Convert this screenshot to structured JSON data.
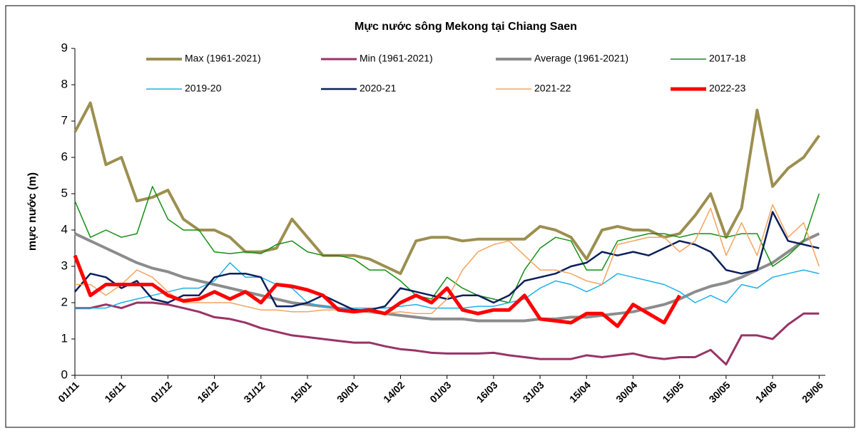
{
  "chart_data": {
    "type": "line",
    "title": "Mực nước sông Mekong tại Chiang Saen",
    "y_label": "mực  nước (m)",
    "x": [
      0,
      5,
      10,
      15,
      20,
      25,
      30,
      35,
      40,
      45,
      50,
      55,
      60,
      65,
      70,
      75,
      80,
      85,
      90,
      95,
      100,
      105,
      110,
      115,
      120,
      125,
      130,
      135,
      140,
      145,
      150,
      155,
      160,
      165,
      170,
      175,
      180,
      185,
      190,
      195,
      200,
      205,
      210,
      215,
      220,
      225,
      230,
      235,
      240
    ],
    "xlim": [
      0,
      242
    ],
    "xticks": [
      {
        "value": 0,
        "label": "01/11"
      },
      {
        "value": 15,
        "label": "16/11"
      },
      {
        "value": 30,
        "label": "01/12"
      },
      {
        "value": 45,
        "label": "16/12"
      },
      {
        "value": 60,
        "label": "31/12"
      },
      {
        "value": 75,
        "label": "15/01"
      },
      {
        "value": 90,
        "label": "30/01"
      },
      {
        "value": 105,
        "label": "14/02"
      },
      {
        "value": 120,
        "label": "01/03"
      },
      {
        "value": 135,
        "label": "16/03"
      },
      {
        "value": 150,
        "label": "31/03"
      },
      {
        "value": 165,
        "label": "15/04"
      },
      {
        "value": 180,
        "label": "30/04"
      },
      {
        "value": 195,
        "label": "15/05"
      },
      {
        "value": 210,
        "label": "30/05"
      },
      {
        "value": 225,
        "label": "14/06"
      },
      {
        "value": 240,
        "label": "29/06"
      }
    ],
    "ylim": [
      0,
      9
    ],
    "yticks": [
      0,
      1,
      2,
      3,
      4,
      5,
      6,
      7,
      8,
      9
    ],
    "series": [
      {
        "name": "Max (1961-2021)",
        "color": "#9c8f50",
        "width": 4,
        "values": [
          6.7,
          7.5,
          5.8,
          6.0,
          4.8,
          4.9,
          5.1,
          4.3,
          4.0,
          4.0,
          3.8,
          3.4,
          3.4,
          3.5,
          4.3,
          3.8,
          3.3,
          3.3,
          3.3,
          3.2,
          3.0,
          2.8,
          3.7,
          3.8,
          3.8,
          3.7,
          3.75,
          3.75,
          3.75,
          3.75,
          4.1,
          4.0,
          3.8,
          3.2,
          4.0,
          4.1,
          4.0,
          4.0,
          3.8,
          3.9,
          4.4,
          5.0,
          3.8,
          4.6,
          7.3,
          5.2,
          5.7,
          6.0,
          6.6
        ]
      },
      {
        "name": "Min (1961-2021)",
        "color": "#993366",
        "width": 3,
        "values": [
          1.85,
          1.85,
          1.95,
          1.85,
          2.0,
          2.0,
          1.95,
          1.85,
          1.75,
          1.6,
          1.55,
          1.45,
          1.3,
          1.2,
          1.1,
          1.05,
          1.0,
          0.95,
          0.9,
          0.9,
          0.8,
          0.72,
          0.68,
          0.62,
          0.6,
          0.6,
          0.6,
          0.62,
          0.55,
          0.5,
          0.45,
          0.45,
          0.45,
          0.55,
          0.5,
          0.55,
          0.6,
          0.5,
          0.45,
          0.5,
          0.5,
          0.7,
          0.3,
          1.1,
          1.1,
          1.0,
          1.4,
          1.7,
          1.7
        ]
      },
      {
        "name": "Average (1961-2021)",
        "color": "#8c8c8c",
        "width": 4,
        "values": [
          3.9,
          3.7,
          3.5,
          3.3,
          3.1,
          2.95,
          2.85,
          2.7,
          2.6,
          2.5,
          2.4,
          2.3,
          2.2,
          2.1,
          2.0,
          1.95,
          1.9,
          1.85,
          1.8,
          1.75,
          1.7,
          1.65,
          1.6,
          1.55,
          1.55,
          1.55,
          1.5,
          1.5,
          1.5,
          1.5,
          1.55,
          1.55,
          1.6,
          1.6,
          1.65,
          1.7,
          1.75,
          1.85,
          1.95,
          2.1,
          2.3,
          2.45,
          2.55,
          2.7,
          2.9,
          3.1,
          3.4,
          3.7,
          3.9
        ]
      },
      {
        "name": "2017-18",
        "color": "#138f13",
        "width": 1.5,
        "values": [
          4.8,
          3.8,
          4.0,
          3.8,
          3.9,
          5.2,
          4.3,
          4.0,
          4.0,
          3.4,
          3.35,
          3.4,
          3.35,
          3.6,
          3.7,
          3.4,
          3.3,
          3.3,
          3.2,
          2.9,
          2.9,
          2.6,
          2.2,
          2.1,
          2.7,
          2.4,
          2.2,
          2.1,
          2.0,
          2.9,
          3.5,
          3.8,
          3.7,
          2.9,
          2.9,
          3.7,
          3.8,
          3.9,
          3.9,
          3.8,
          3.9,
          3.9,
          3.8,
          3.9,
          3.9,
          3.0,
          3.3,
          3.7,
          5.0
        ]
      },
      {
        "name": "2019-20",
        "color": "#1fb0e8",
        "width": 1.5,
        "values": [
          1.85,
          1.85,
          1.85,
          2.0,
          2.1,
          2.2,
          2.3,
          2.4,
          2.4,
          2.6,
          3.1,
          2.7,
          2.7,
          2.5,
          2.4,
          2.0,
          1.9,
          1.85,
          1.85,
          1.85,
          1.85,
          1.9,
          1.95,
          1.85,
          1.85,
          1.85,
          1.9,
          1.9,
          2.0,
          2.1,
          2.4,
          2.6,
          2.5,
          2.3,
          2.5,
          2.8,
          2.7,
          2.6,
          2.5,
          2.3,
          2.0,
          2.2,
          2.0,
          2.5,
          2.4,
          2.7,
          2.8,
          2.9,
          2.8
        ]
      },
      {
        "name": "2020-21",
        "color": "#0b1f5c",
        "width": 2.5,
        "values": [
          2.3,
          2.8,
          2.7,
          2.4,
          2.6,
          2.1,
          2.0,
          2.2,
          2.2,
          2.7,
          2.8,
          2.8,
          2.7,
          1.9,
          1.9,
          2.0,
          2.2,
          2.0,
          1.8,
          1.8,
          1.9,
          2.4,
          2.3,
          2.2,
          2.1,
          2.2,
          2.2,
          2.0,
          2.2,
          2.6,
          2.7,
          2.8,
          3.0,
          3.1,
          3.4,
          3.3,
          3.4,
          3.3,
          3.5,
          3.7,
          3.6,
          3.4,
          2.9,
          2.8,
          2.9,
          4.5,
          3.7,
          3.6,
          3.5
        ]
      },
      {
        "name": "2021-22",
        "color": "#f4a460",
        "width": 1.5,
        "values": [
          2.5,
          2.5,
          2.2,
          2.5,
          2.9,
          2.7,
          2.3,
          2.0,
          2.0,
          2.0,
          2.0,
          1.9,
          1.8,
          1.8,
          1.75,
          1.75,
          1.8,
          1.8,
          1.75,
          1.75,
          1.7,
          1.75,
          1.7,
          1.7,
          2.1,
          2.9,
          3.4,
          3.6,
          3.7,
          3.3,
          2.9,
          2.9,
          2.8,
          2.6,
          2.5,
          3.6,
          3.7,
          3.8,
          3.8,
          3.4,
          3.7,
          4.6,
          3.3,
          4.2,
          3.3,
          4.7,
          3.8,
          4.2,
          3.0
        ]
      },
      {
        "name": "2022-23",
        "color": "#ff0000",
        "width": 5,
        "values": [
          3.3,
          2.2,
          2.5,
          2.5,
          2.5,
          2.5,
          2.2,
          2.05,
          2.1,
          2.3,
          2.1,
          2.3,
          2.0,
          2.5,
          2.45,
          2.35,
          2.2,
          1.8,
          1.75,
          1.8,
          1.7,
          2.0,
          2.2,
          2.0,
          2.4,
          1.8,
          1.7,
          1.8,
          1.8,
          2.2,
          1.55,
          1.5,
          1.45,
          1.7,
          1.7,
          1.35,
          1.95,
          1.7,
          1.45,
          2.2,
          null,
          null,
          null,
          null,
          null,
          null,
          null,
          null,
          null
        ]
      }
    ]
  }
}
